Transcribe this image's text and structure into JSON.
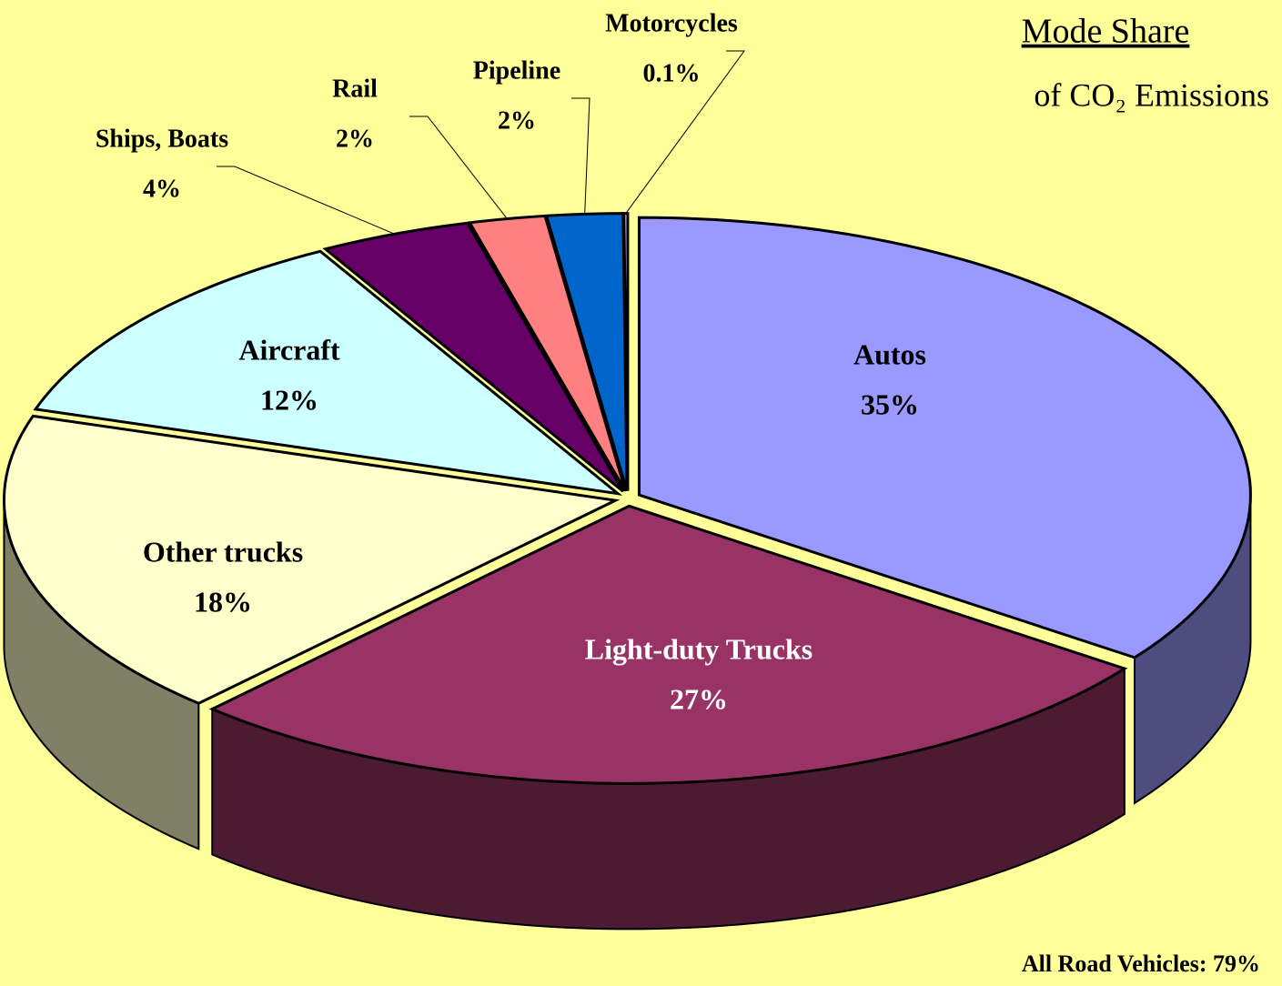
{
  "chart_data": {
    "type": "pie",
    "title": "Mode Share",
    "subtitle": "of CO₂ Emissions",
    "annotation": "All Road Vehicles: 79%",
    "categories": [
      "Autos",
      "Light-duty Trucks",
      "Other trucks",
      "Aircraft",
      "Ships, Boats",
      "Rail",
      "Pipeline",
      "Motorcycles"
    ],
    "values": [
      35,
      27,
      18,
      12,
      4,
      2,
      2,
      0.1
    ],
    "value_labels": [
      "35%",
      "27%",
      "18%",
      "12%",
      "4%",
      "2%",
      "2%",
      "0.1%"
    ],
    "colors": [
      "#9999ff",
      "#993366",
      "#ffffcc",
      "#ccffff",
      "#660066",
      "#ff8080",
      "#0066cc",
      "#ccccff"
    ],
    "background": "#ffff99"
  }
}
